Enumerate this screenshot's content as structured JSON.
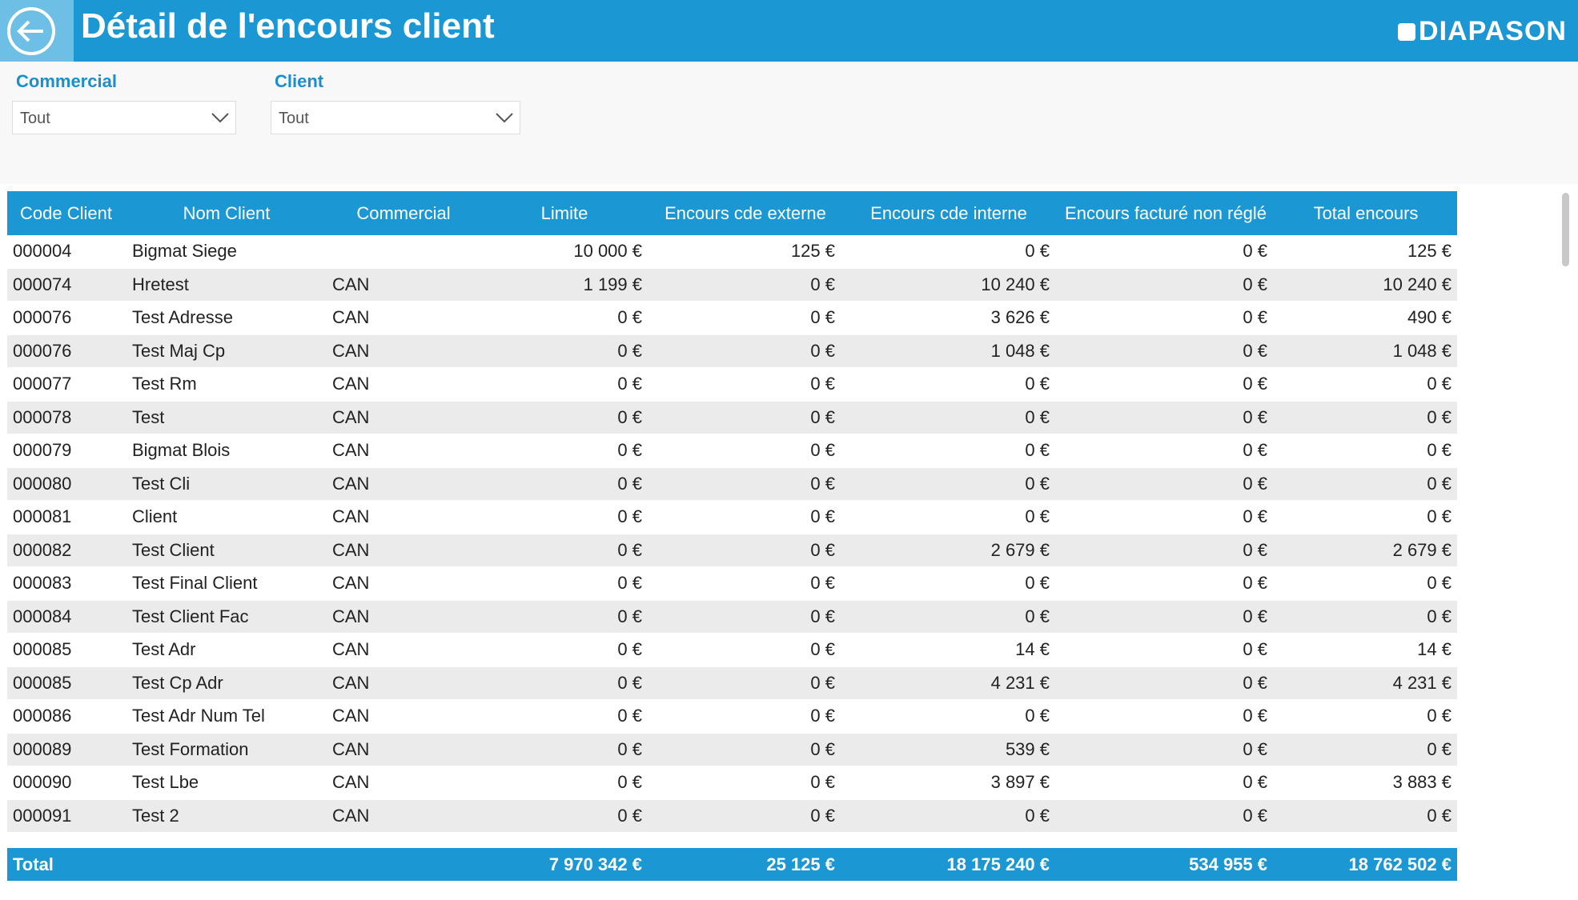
{
  "header": {
    "title": "Détail de l'encours client",
    "logo": "DIAPASON"
  },
  "filters": [
    {
      "label": "Commercial",
      "value": "Tout"
    },
    {
      "label": "Client",
      "value": "Tout"
    }
  ],
  "table": {
    "columns": [
      "Code Client",
      "Nom Client",
      "Commercial",
      "Limite",
      "Encours cde externe",
      "Encours cde interne",
      "Encours facturé non réglé",
      "Total encours"
    ],
    "rows": [
      [
        "000004",
        "Bigmat Siege",
        null,
        "10 000 €",
        "125 €",
        "0 €",
        "0 €",
        "125 €"
      ],
      [
        "000074",
        "Hretest",
        "CAN",
        "1 199 €",
        "0 €",
        "10 240 €",
        "0 €",
        "10 240 €"
      ],
      [
        "000076",
        "Test Adresse",
        "CAN",
        "0 €",
        "0 €",
        "3 626 €",
        "0 €",
        "490 €"
      ],
      [
        "000076",
        "Test Maj Cp",
        "CAN",
        "0 €",
        "0 €",
        "1 048 €",
        "0 €",
        "1 048 €"
      ],
      [
        "000077",
        "Test Rm",
        "CAN",
        "0 €",
        "0 €",
        "0 €",
        "0 €",
        "0 €"
      ],
      [
        "000078",
        "Test",
        "CAN",
        "0 €",
        "0 €",
        "0 €",
        "0 €",
        "0 €"
      ],
      [
        "000079",
        "Bigmat Blois",
        "CAN",
        "0 €",
        "0 €",
        "0 €",
        "0 €",
        "0 €"
      ],
      [
        "000080",
        "Test Cli",
        "CAN",
        "0 €",
        "0 €",
        "0 €",
        "0 €",
        "0 €"
      ],
      [
        "000081",
        "Client",
        "CAN",
        "0 €",
        "0 €",
        "0 €",
        "0 €",
        "0 €"
      ],
      [
        "000082",
        "Test Client",
        "CAN",
        "0 €",
        "0 €",
        "2 679 €",
        "0 €",
        "2 679 €"
      ],
      [
        "000083",
        "Test Final Client",
        "CAN",
        "0 €",
        "0 €",
        "0 €",
        "0 €",
        "0 €"
      ],
      [
        "000084",
        "Test Client Fac",
        "CAN",
        "0 €",
        "0 €",
        "0 €",
        "0 €",
        "0 €"
      ],
      [
        "000085",
        "Test Adr",
        "CAN",
        "0 €",
        "0 €",
        "14 €",
        "0 €",
        "14 €"
      ],
      [
        "000085",
        "Test Cp Adr",
        "CAN",
        "0 €",
        "0 €",
        "4 231 €",
        "0 €",
        "4 231 €"
      ],
      [
        "000086",
        "Test Adr Num Tel",
        "CAN",
        "0 €",
        "0 €",
        "0 €",
        "0 €",
        "0 €"
      ],
      [
        "000089",
        "Test Formation",
        "CAN",
        "0 €",
        "0 €",
        "539 €",
        "0 €",
        "0 €"
      ],
      [
        "000090",
        "Test Lbe",
        "CAN",
        "0 €",
        "0 €",
        "3 897 €",
        "0 €",
        "3 883 €"
      ],
      [
        "000091",
        "Test 2",
        "CAN",
        "0 €",
        "0 €",
        "0 €",
        "0 €",
        "0 €"
      ]
    ],
    "total": [
      "Total",
      null,
      null,
      "7 970 342 €",
      "25 125 €",
      "18 175 240 €",
      "534 955 €",
      "18 762 502 €"
    ]
  }
}
